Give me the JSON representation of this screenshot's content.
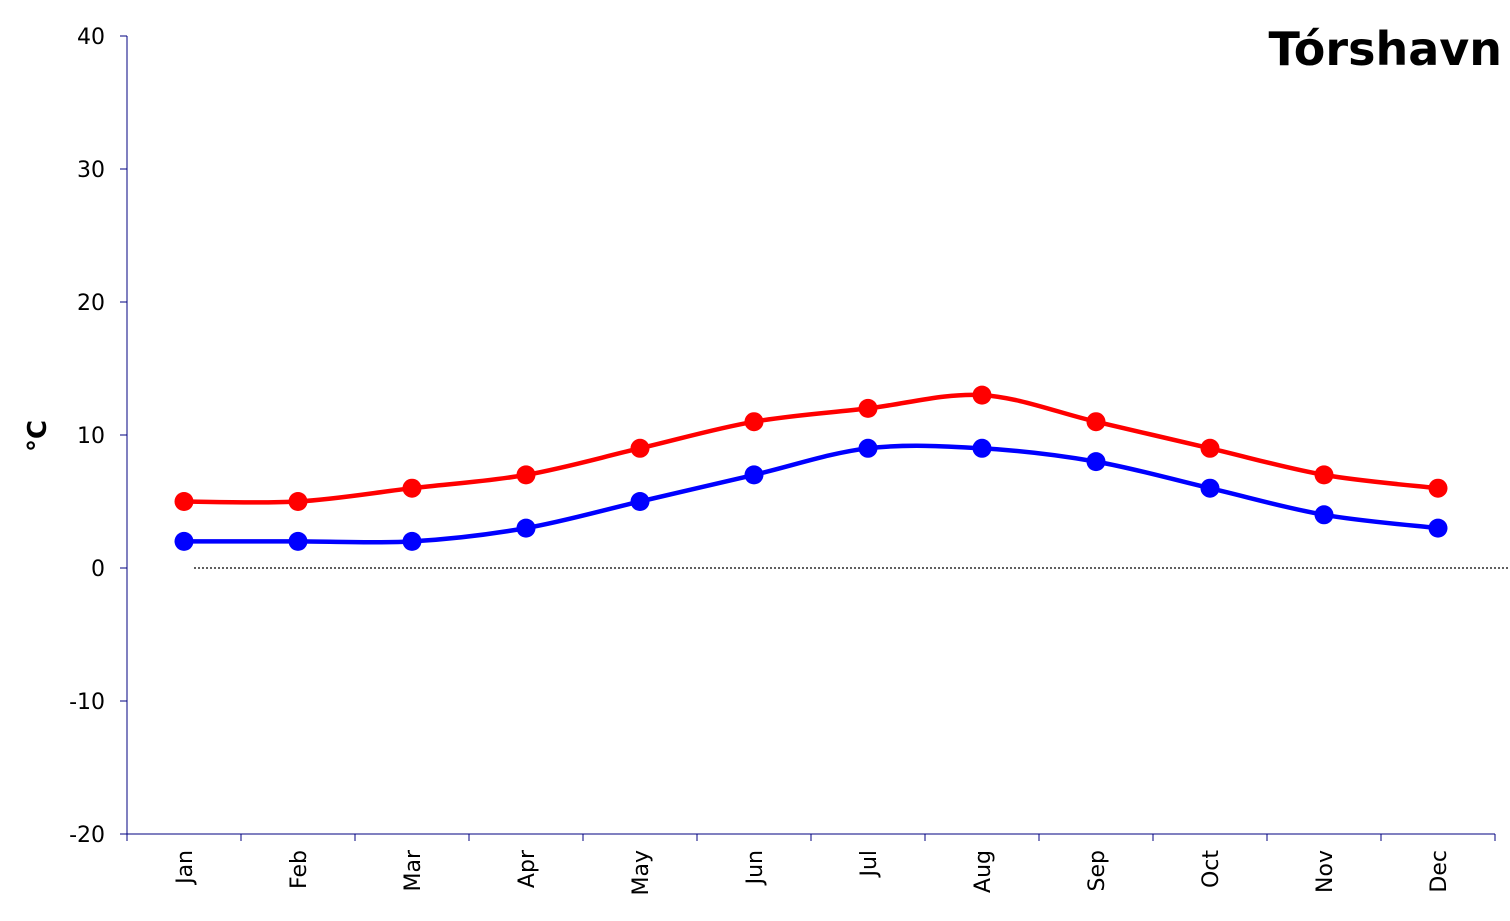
{
  "chart_data": {
    "type": "line",
    "title": "Tórshavn",
    "xlabel": "",
    "ylabel": "°C",
    "ylim": [
      -20,
      40
    ],
    "yticks": [
      "40",
      "30",
      "20",
      "10",
      "0",
      "-10",
      "-20"
    ],
    "categories": [
      "Jan",
      "Feb",
      "Mar",
      "Apr",
      "May",
      "Jun",
      "Jul",
      "Aug",
      "Sep",
      "Oct",
      "Nov",
      "Dec"
    ],
    "grid": false,
    "zero_line": true,
    "series": [
      {
        "color": "#ff0000",
        "values": [
          5,
          5,
          6,
          7,
          9,
          11,
          12,
          13,
          11,
          9,
          7,
          6
        ]
      },
      {
        "color": "#0000ff",
        "values": [
          2,
          2,
          2,
          3,
          5,
          7,
          9,
          9,
          8,
          6,
          4,
          3
        ]
      }
    ]
  }
}
